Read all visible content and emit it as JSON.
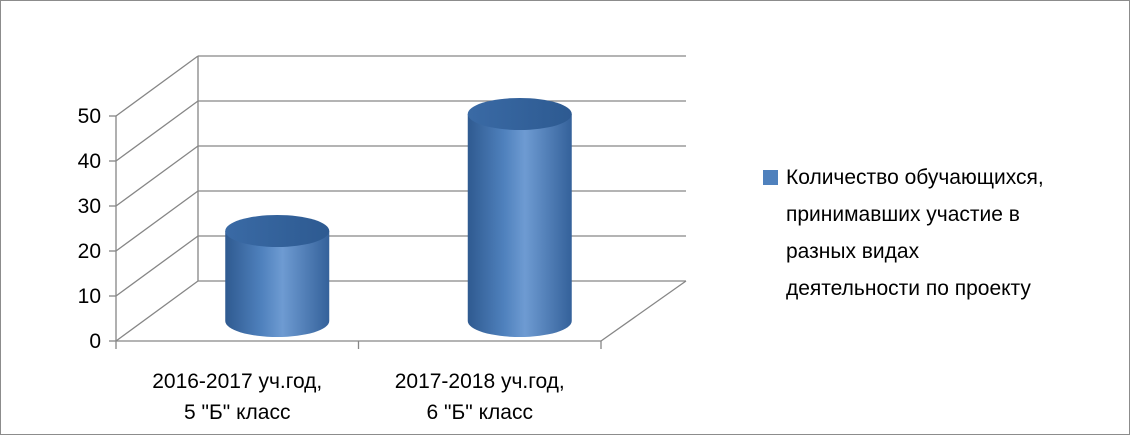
{
  "chart_data": {
    "type": "bar",
    "style": "3d-cylinder",
    "categories": [
      "2016-2017 уч.год, 5 \"Б\" класс",
      "2017-2018 уч.год, 6 \"Б\" класс"
    ],
    "category_lines": [
      [
        "2016-2017 уч.год,",
        "5 \"Б\" класс"
      ],
      [
        "2017-2018 уч.год,",
        "6 \"Б\" класс"
      ]
    ],
    "series": [
      {
        "name": "Количество обучающихся, принимавших участие в разных видах деятельности по проекту",
        "values": [
          20,
          46
        ],
        "color": "#4f81bd"
      }
    ],
    "ylim": [
      0,
      50
    ],
    "yticks": [
      0,
      10,
      20,
      30,
      40,
      50
    ],
    "grid": true,
    "legend_position": "right",
    "title": "",
    "xlabel": "",
    "ylabel": ""
  },
  "legend": {
    "lines": [
      "Количество обучающихся,",
      "принимавших участие в",
      "разных видах",
      "деятельности по проекту"
    ]
  }
}
